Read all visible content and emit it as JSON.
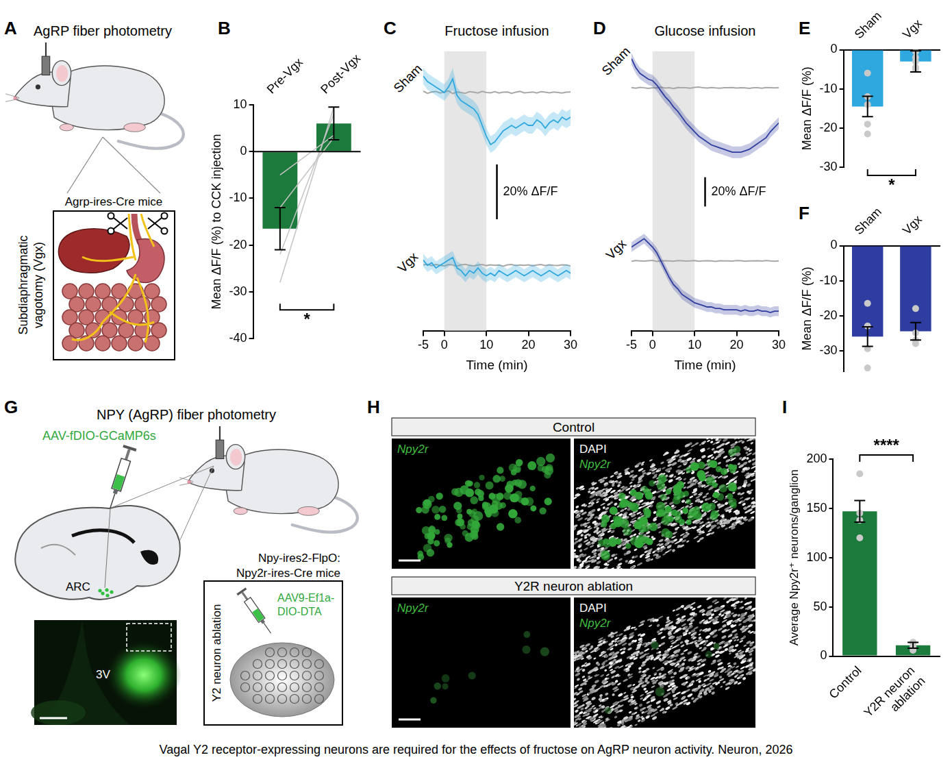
{
  "chart_data": [
    {
      "panel": "B",
      "type": "bar",
      "categories": [
        "Pre-Vgx",
        "Post-Vgx"
      ],
      "values": [
        -16.5,
        6
      ],
      "errors": [
        4.5,
        3.5
      ],
      "color": "#1d7a3d",
      "ylabel": "Mean ΔF/F (%) to CCK injection",
      "ylim": [
        -40,
        10
      ],
      "yticks": [
        -40,
        -30,
        -20,
        -10,
        0,
        10
      ],
      "grid": false,
      "series": [
        {
          "type": "line",
          "marker": "none",
          "color": "#c4c4c4",
          "values": [
            -28,
            9.5
          ]
        },
        {
          "type": "line",
          "marker": "none",
          "color": "#c4c4c4",
          "values": [
            -22,
            8
          ]
        },
        {
          "type": "line",
          "marker": "none",
          "color": "#c4c4c4",
          "values": [
            -12,
            3
          ]
        },
        {
          "type": "line",
          "marker": "none",
          "color": "#c4c4c4",
          "values": [
            -5,
            3.5
          ]
        }
      ],
      "significance": {
        "between": [
          0,
          1
        ],
        "label": "*"
      }
    },
    {
      "panel": "C",
      "type": "line",
      "title": "Fructose infusion",
      "xlabel": "Time (min)",
      "x": [
        -5,
        -4,
        -3,
        -2,
        -1,
        0,
        1,
        2,
        3,
        4,
        5,
        6,
        7,
        8,
        9,
        10,
        11,
        12,
        13,
        14,
        15,
        16,
        17,
        18,
        19,
        20,
        21,
        22,
        23,
        24,
        25,
        26,
        27,
        28,
        29,
        30
      ],
      "xlim": [
        -5,
        30
      ],
      "xticks": [
        -5,
        0,
        10,
        20,
        30
      ],
      "ylim": [
        -25,
        15
      ],
      "tick_labels": "x",
      "grid": false,
      "shaded": [
        0,
        10
      ],
      "scale_bar": {
        "value": 20,
        "label": "20% ΔF/F"
      },
      "subplots": [
        {
          "label": "Sham",
          "series": [
            {
              "color": "#2ea8df",
              "values": [
                6,
                4,
                3,
                2,
                1,
                0,
                2,
                5,
                -1,
                -3,
                -4,
                -5,
                -6,
                -8,
                -12,
                -16,
                -19,
                -18,
                -16,
                -14,
                -13,
                -12,
                -13,
                -12,
                -11,
                -12,
                -12,
                -10,
                -11,
                -13,
                -11,
                -10,
                -11,
                -9,
                -10,
                -9
              ],
              "sem": [
                3,
                3,
                3,
                3,
                3,
                3,
                3,
                4,
                3,
                3,
                3,
                3,
                3,
                3,
                3,
                3,
                3,
                3,
                3,
                3,
                3,
                3,
                3,
                3,
                3,
                3,
                3,
                3,
                3,
                3,
                3,
                3,
                3,
                3,
                3,
                3
              ]
            },
            {
              "color": "#a8a8a8",
              "values": [
                0.5,
                -0.3,
                0.2,
                0.4,
                -0.2,
                0.1,
                0.6,
                -0.4,
                0.2,
                0,
                -0.3,
                0.3,
                0.1,
                -0.2,
                0.4,
                0,
                -0.1,
                0.3,
                -0.2,
                0.1,
                0.2,
                -0.3,
                0.1,
                0.4,
                -0.1,
                0,
                0.2,
                -0.2,
                0.3,
                0.1,
                -0.1,
                0.2,
                0,
                -0.2,
                0.1,
                0.2
              ]
            }
          ]
        },
        {
          "label": "Vgx",
          "series": [
            {
              "color": "#2ea8df",
              "values": [
                2,
                0,
                1,
                -1,
                0,
                1,
                2,
                3,
                -1,
                -2,
                -4,
                -2,
                -3,
                -1,
                -3,
                -4,
                -3,
                -4,
                -2,
                -3,
                -4,
                -3,
                -2,
                -3,
                -4,
                -3,
                -2,
                -3,
                -4,
                -3,
                -2,
                -3,
                -4,
                -3,
                -2,
                -3
              ],
              "sem": [
                2.5,
                2.5,
                2.5,
                2.5,
                2.5,
                2.5,
                2.5,
                2.5,
                2.5,
                2.5,
                2.5,
                2.5,
                2.5,
                2.5,
                2.5,
                2.5,
                2.5,
                2.5,
                2.5,
                2.5,
                2.5,
                2.5,
                2.5,
                2.5,
                2.5,
                2.5,
                2.5,
                2.5,
                2.5,
                2.5,
                2.5,
                2.5,
                2.5,
                2.5,
                2.5,
                2.5
              ]
            },
            {
              "color": "#a8a8a8",
              "values": [
                0.2,
                0.4,
                -0.1,
                0.3,
                0,
                -0.2,
                0.3,
                0.1,
                -0.3,
                0.2,
                0.4,
                0,
                -0.2,
                0.1,
                0.3,
                -0.1,
                0.2,
                0,
                0.1,
                -0.3,
                0.2,
                0.3,
                -0.1,
                0.1,
                0,
                0.2,
                -0.2,
                0.1,
                0.3,
                -0.1,
                0.2,
                0,
                -0.1,
                0.2,
                0.1,
                -0.2
              ]
            }
          ]
        }
      ]
    },
    {
      "panel": "D",
      "type": "line",
      "title": "Glucose infusion",
      "xlabel": "Time (min)",
      "x": [
        -5,
        -4,
        -3,
        -2,
        -1,
        0,
        1,
        2,
        3,
        4,
        5,
        6,
        7,
        8,
        9,
        10,
        11,
        12,
        13,
        14,
        15,
        16,
        17,
        18,
        19,
        20,
        21,
        22,
        23,
        24,
        25,
        26,
        27,
        28,
        29,
        30
      ],
      "xlim": [
        -5,
        30
      ],
      "xticks": [
        -5,
        0,
        10,
        20,
        30
      ],
      "ylim": [
        -50,
        25
      ],
      "tick_labels": "x",
      "grid": false,
      "shaded": [
        0,
        10
      ],
      "scale_bar": {
        "value": 20,
        "label": "20% ΔF/F"
      },
      "subplots": [
        {
          "label": "Sham",
          "series": [
            {
              "color": "#2e3d9f",
              "values": [
                20,
                14,
                10,
                8,
                6,
                5,
                2,
                -2,
                -6,
                -9,
                -13,
                -16,
                -20,
                -24,
                -27,
                -30,
                -33,
                -35,
                -37,
                -39,
                -40,
                -41,
                -42,
                -43,
                -44,
                -44,
                -44,
                -43,
                -42,
                -40,
                -38,
                -36,
                -34,
                -30,
                -27,
                -24
              ],
              "sem": [
                4,
                4,
                4,
                4,
                4,
                4,
                4,
                4,
                4,
                4,
                4,
                4,
                4,
                4,
                4,
                4,
                4,
                4,
                4,
                4,
                4,
                4,
                4,
                4,
                4,
                4,
                4,
                4,
                4,
                4,
                4,
                4,
                4,
                4,
                4,
                4
              ]
            },
            {
              "color": "#a8a8a8",
              "values": [
                0.3,
                -0.2,
                0.4,
                0.1,
                -0.3,
                0.2,
                0,
                0.5,
                -0.1,
                0.2,
                -0.4,
                0.3,
                0.1,
                0.2,
                -0.2,
                0.4,
                0.6,
                0.1,
                -0.1,
                0.3,
                0,
                -0.2,
                0.2,
                0.1,
                0.3,
                -0.1,
                0.2,
                0,
                -0.3,
                0.2,
                0.1,
                -0.2,
                0.3,
                0.2,
                0,
                0.1
              ]
            }
          ]
        },
        {
          "label": "Vgx",
          "series": [
            {
              "color": "#2e3d9f",
              "values": [
                10,
                12,
                14,
                16,
                13,
                10,
                6,
                0,
                -6,
                -12,
                -17,
                -20,
                -24,
                -26,
                -28,
                -30,
                -31,
                -32,
                -33,
                -33,
                -34,
                -34,
                -35,
                -35,
                -35,
                -35,
                -36,
                -35,
                -36,
                -36,
                -35,
                -36,
                -36,
                -37,
                -36,
                -36
              ],
              "sem": [
                3.5,
                3.5,
                3.5,
                3.5,
                3.5,
                3.5,
                3.5,
                3.5,
                3.5,
                3.5,
                3.5,
                3.5,
                3.5,
                3.5,
                3.5,
                3.5,
                3.5,
                3.5,
                3.5,
                3.5,
                3.5,
                3.5,
                3.5,
                3.5,
                3.5,
                3.5,
                3.5,
                3.5,
                3.5,
                3.5,
                3.5,
                3.5,
                3.5,
                3.5,
                3.5,
                3.5
              ]
            },
            {
              "color": "#a8a8a8",
              "values": [
                -0.2,
                0.3,
                0.1,
                -0.1,
                0.2,
                0.4,
                -0.3,
                0.1,
                0.2,
                0,
                -0.2,
                0.3,
                0.2,
                -0.1,
                0.1,
                0.3,
                -0.2,
                0,
                0.2,
                0.1,
                -0.3,
                0.2,
                0,
                0.1,
                -0.1,
                0.3,
                0.2,
                -0.2,
                0.1,
                0,
                0.2,
                -0.1,
                0.3,
                0,
                -0.2,
                0.1
              ]
            }
          ]
        }
      ]
    },
    {
      "panel": "E",
      "type": "bar",
      "categories": [
        "Sham",
        "Vgx"
      ],
      "values": [
        -14.5,
        -3
      ],
      "errors": [
        2.6,
        2.7
      ],
      "color": "#2ea8df",
      "ylabel": "Mean ΔF/F (%)",
      "ylim": [
        -30,
        0
      ],
      "yticks": [
        -30,
        -20,
        -10,
        0
      ],
      "grid": false,
      "points": [
        [
          -6,
          -12,
          -14,
          -19,
          -21.5
        ],
        [
          -0.5,
          -2,
          -3,
          -4.5,
          -5
        ]
      ],
      "significance": {
        "between": [
          0,
          1
        ],
        "label": "*"
      }
    },
    {
      "panel": "F",
      "type": "bar",
      "categories": [
        "Sham",
        "Vgx"
      ],
      "values": [
        -26,
        -24.5
      ],
      "errors": [
        2.8,
        2.5
      ],
      "color": "#2e3d9f",
      "ylabel": "Mean ΔF/F (%)",
      "ylim": [
        -36,
        0
      ],
      "yticks": [
        -30,
        -20,
        -10,
        0
      ],
      "grid": false,
      "points": [
        [
          -16.5,
          -23,
          -29.5,
          -35
        ],
        [
          -18,
          -25,
          -27,
          -28
        ]
      ]
    },
    {
      "panel": "I",
      "type": "bar",
      "categories": [
        "Control",
        "Y2R neuron ablation"
      ],
      "values": [
        147,
        11
      ],
      "errors": [
        11,
        3
      ],
      "color": "#1d7a3d",
      "ylabel": "Average Npy2r⁺ neurons/ganglion",
      "ylim": [
        0,
        200
      ],
      "yticks": [
        0,
        50,
        100,
        150,
        200
      ],
      "grid": false,
      "points": [
        [
          185,
          145,
          138,
          120
        ],
        [
          6,
          10,
          14,
          14
        ]
      ],
      "significance": {
        "between": [
          0,
          1
        ],
        "label": "****"
      }
    }
  ],
  "diagrams": [
    {
      "letter": "A",
      "title": "AgRP fiber photometry",
      "box_label": "Agrp-ires-Cre mice",
      "side_label": "Subdiaphragmatic vagotomy (Vgx)"
    },
    {
      "letter": "G",
      "title": "NPY (AgRP) fiber photometry",
      "virus": "AAV-fDIO-GCaMP6s",
      "region": "ARC",
      "inset_label": "3V",
      "mice": [
        "Npy-ires2-FlpO:",
        "Npy2r-ires-Cre mice"
      ],
      "box_side_label": "Y2 neuron ablation",
      "box_virus": "AAV9-Ef1a-DIO-DTA"
    },
    {
      "letter": "H",
      "rows": [
        {
          "header": "Control",
          "left_labels": [
            "Npy2r"
          ],
          "right_labels": [
            "DAPI",
            "Npy2r"
          ]
        },
        {
          "header": "Y2R neuron ablation",
          "left_labels": [
            "Npy2r"
          ],
          "right_labels": [
            "DAPI",
            "Npy2r"
          ]
        }
      ]
    }
  ],
  "caption": "Vagal Y2 receptor-expressing neurons are required for the effects of fructose on AgRP neuron activity. Neuron, 2026"
}
